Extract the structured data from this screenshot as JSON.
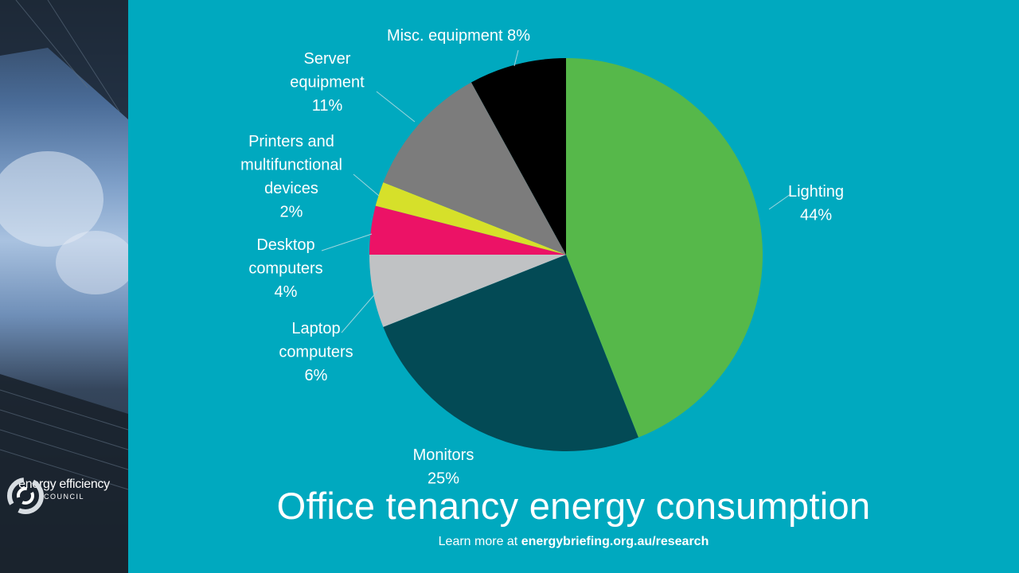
{
  "chart_data": {
    "type": "pie",
    "title": "Office tenancy energy consumption",
    "unit": "%",
    "slices": [
      {
        "name": "Lighting",
        "value": 44,
        "color": "#56b84a",
        "label_lines": [
          "Lighting",
          "44%"
        ]
      },
      {
        "name": "Monitors",
        "value": 25,
        "color": "#034a55",
        "label_lines": [
          "Monitors",
          "25%"
        ]
      },
      {
        "name": "Laptop computers",
        "value": 6,
        "color": "#c0c2c4",
        "label_lines": [
          "Laptop",
          "computers",
          "6%"
        ]
      },
      {
        "name": "Desktop computers",
        "value": 4,
        "color": "#ec1266",
        "label_lines": [
          "Desktop",
          "computers",
          "4%"
        ]
      },
      {
        "name": "Printers and multifunctional devices",
        "value": 2,
        "color": "#d6e02a",
        "label_lines": [
          "Printers and",
          "multifunctional",
          "devices",
          "2%"
        ]
      },
      {
        "name": "Server equipment",
        "value": 11,
        "color": "#7c7c7c",
        "label_lines": [
          "Server",
          "equipment",
          "11%"
        ]
      },
      {
        "name": "Misc. equipment",
        "value": 8,
        "color": "#000000",
        "label_lines": [
          "Misc. equipment 8%"
        ]
      }
    ]
  },
  "footer": {
    "prefix": "Learn more at ",
    "link": "energybriefing.org.au/research"
  },
  "logo": {
    "name": "energy efficiency",
    "sub": "COUNCIL"
  },
  "colors": {
    "background": "#00a9bf",
    "text": "#ffffff"
  }
}
